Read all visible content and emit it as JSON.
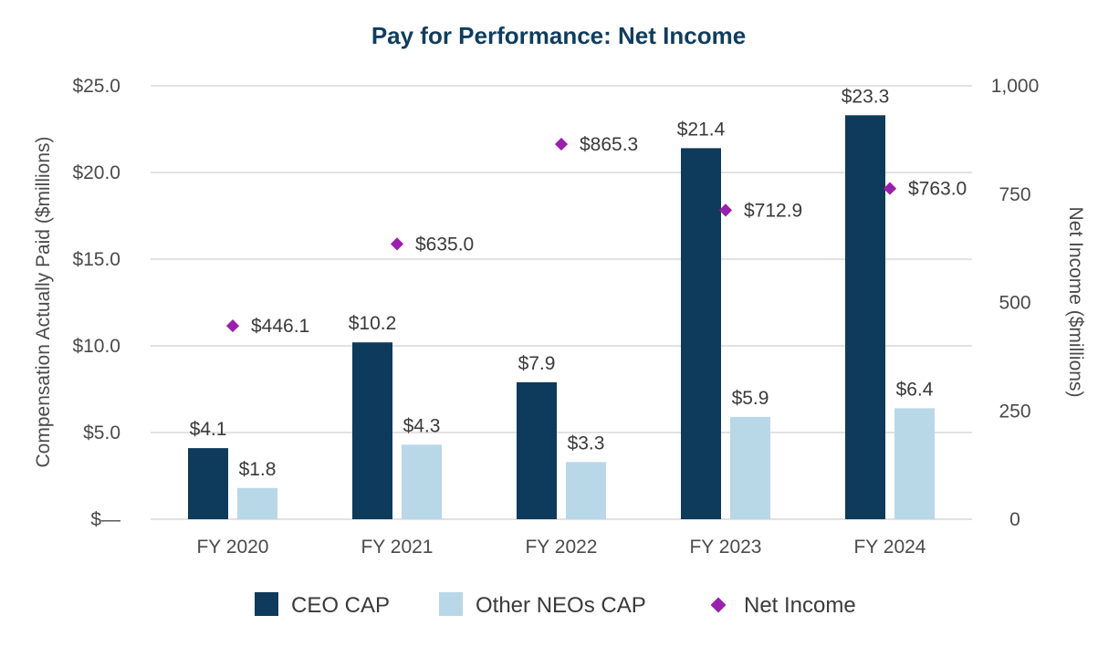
{
  "chart_data": {
    "type": "bar",
    "title": "Pay for Performance: Net Income",
    "categories": [
      "FY 2020",
      "FY 2021",
      "FY 2022",
      "FY 2023",
      "FY 2024"
    ],
    "series": [
      {
        "name": "CEO CAP",
        "kind": "bar",
        "axis": "left",
        "color": "#0e3a5b",
        "values": [
          4.1,
          10.2,
          7.9,
          21.4,
          23.3
        ],
        "labels": [
          "$4.1",
          "$10.2",
          "$7.9",
          "$21.4",
          "$23.3"
        ]
      },
      {
        "name": "Other NEOs CAP",
        "kind": "bar",
        "axis": "left",
        "color": "#b8d8e8",
        "values": [
          1.8,
          4.3,
          3.3,
          5.9,
          6.4
        ],
        "labels": [
          "$1.8",
          "$4.3",
          "$3.3",
          "$5.9",
          "$6.4"
        ]
      },
      {
        "name": "Net Income",
        "kind": "marker",
        "axis": "right",
        "color": "#9b1fae",
        "values": [
          446.1,
          635.0,
          865.3,
          712.9,
          763.0
        ],
        "labels": [
          "$446.1",
          "$635.0",
          "$865.3",
          "$712.9",
          "$763.0"
        ]
      }
    ],
    "y_left": {
      "label": "Compensation Actually Paid ($millions)",
      "min": 0,
      "max": 25,
      "ticks": [
        0,
        5,
        10,
        15,
        20,
        25
      ],
      "tick_labels": [
        "$—",
        "$5.0",
        "$10.0",
        "$15.0",
        "$20.0",
        "$25.0"
      ]
    },
    "y_right": {
      "label": "Net Income ($millions)",
      "min": 0,
      "max": 1000,
      "ticks": [
        0,
        250,
        500,
        750,
        1000
      ],
      "tick_labels": [
        "0",
        "250",
        "500",
        "750",
        "1,000"
      ]
    },
    "grid": true,
    "legend_position": "bottom-center"
  }
}
